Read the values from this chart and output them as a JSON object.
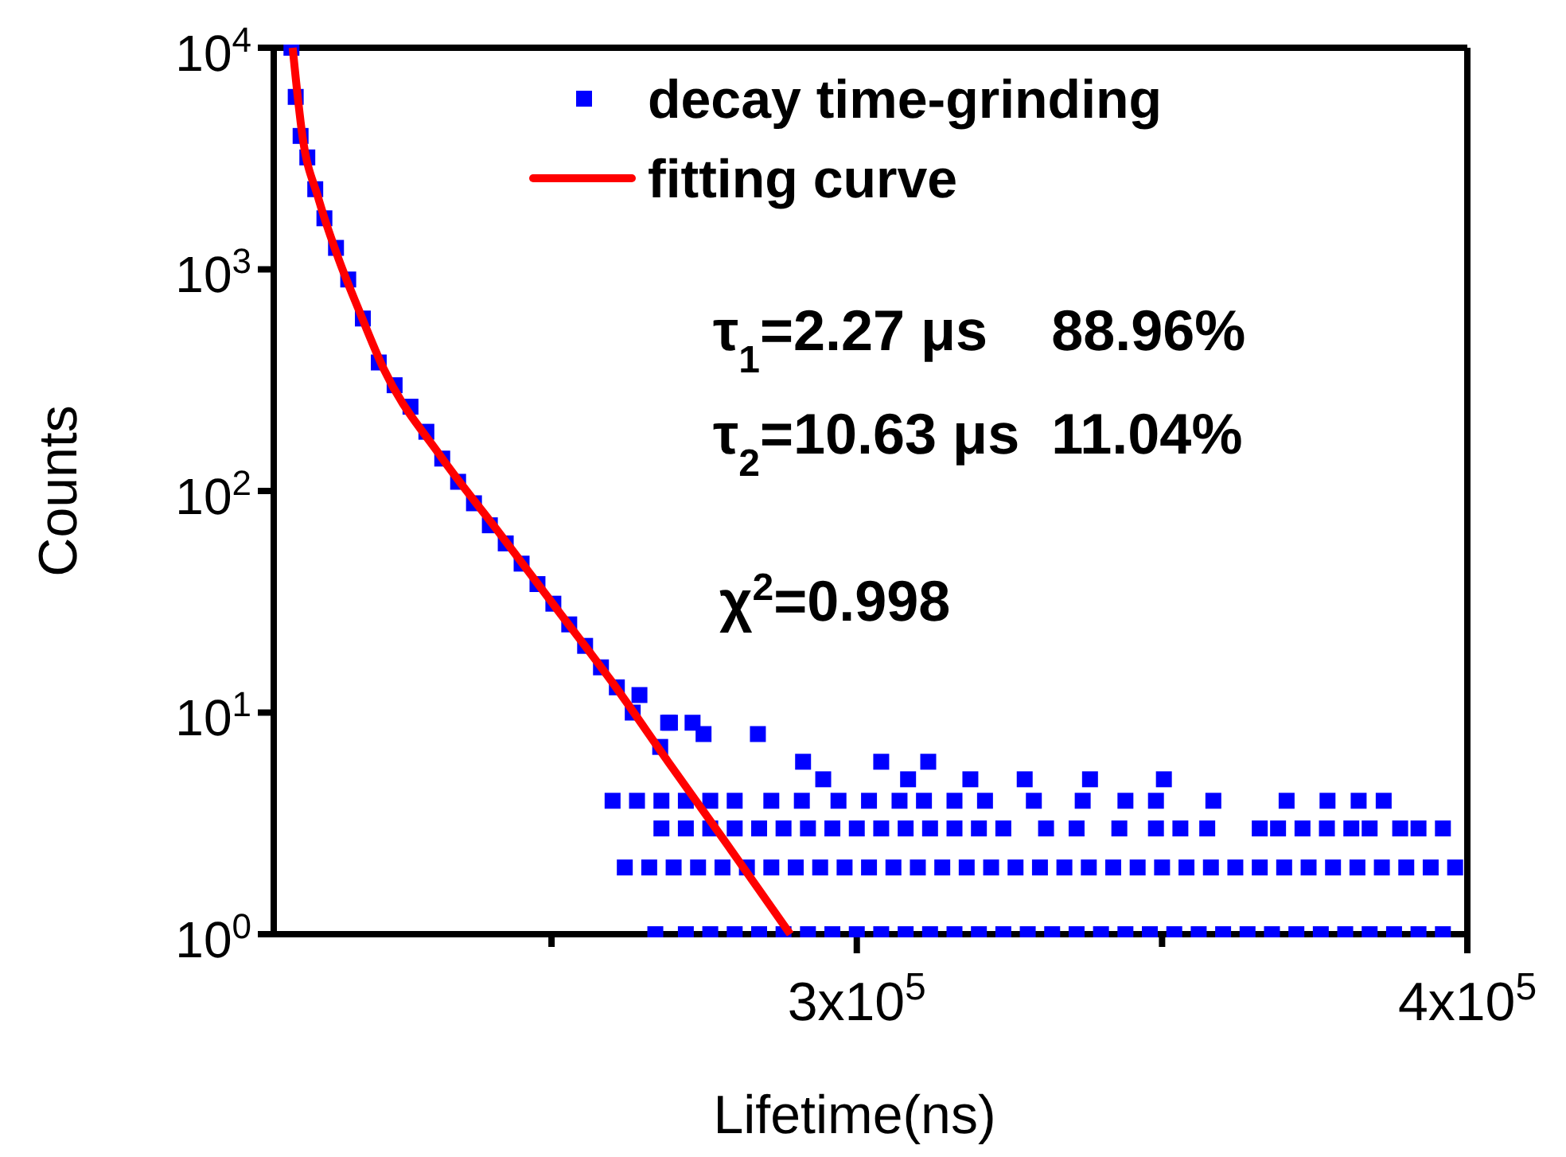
{
  "chart_data": {
    "type": "scatter",
    "xlabel": "Lifetime(ns)",
    "ylabel": "Counts",
    "log": "y",
    "xlim": [
      204500,
      400000
    ],
    "ylim": [
      1,
      10000
    ],
    "xticks": [
      {
        "value": 250000,
        "label": null
      },
      {
        "value": 300000,
        "label": "3x10$^{5}$"
      },
      {
        "value": 350000,
        "label": null
      },
      {
        "value": 400000,
        "label": "4x10$^{5}$"
      }
    ],
    "yticks": [
      {
        "value": 1,
        "label": "10$^{0}$"
      },
      {
        "value": 10,
        "label": "10$^{1}$"
      },
      {
        "value": 100,
        "label": "10$^{2}$"
      },
      {
        "value": 1000,
        "label": "10$^{3}$"
      },
      {
        "value": 10000,
        "label": "10$^{4}$"
      }
    ],
    "grid": false,
    "legend": "top right",
    "annotations": [
      "τ$_{1}$=2.27 μs    88.96%",
      "τ$_{2}$=10.63 μs  11.04%",
      "χ$^{2}$=0.998"
    ],
    "series": [
      {
        "name": "decay time-grinding",
        "color": "#0000ff",
        "marker": "square",
        "x": [
          207400,
          208100,
          208900,
          210000,
          211300,
          212800,
          214700,
          216700,
          219100,
          221700,
          224300,
          226900,
          229500,
          232100,
          234700,
          237300,
          239900,
          242500,
          245100,
          247700,
          250300,
          252900,
          255500,
          258100,
          260700,
          263300,
          264400,
          269100,
          267800,
          269400,
          273100,
          274900,
          283800,
          262000,
          266000,
          270000,
          274000,
          278000,
          282000,
          286000,
          290000,
          294000,
          298000,
          302000,
          306000,
          310000,
          314000,
          318000,
          322000,
          326000,
          330000,
          334000,
          338000,
          342000,
          346000,
          350000,
          354000,
          358000,
          362000,
          366000,
          370000,
          374000,
          378000,
          382000,
          386000,
          390000,
          394000,
          398000,
          267000,
          272000,
          276000,
          280000,
          284000,
          288000,
          292000,
          296000,
          300000,
          304000,
          308000,
          312000,
          316000,
          320000,
          324000,
          328000,
          332000,
          336000,
          340000,
          344000,
          348000,
          352000,
          356000,
          360000,
          364000,
          368000,
          372000,
          376000,
          380000,
          384000,
          388000,
          392000,
          396000,
          268000,
          272000,
          276000,
          280000,
          284000,
          288000,
          292000,
          296000,
          300000,
          304000,
          308000,
          312000,
          316000,
          320000,
          324000,
          331000,
          336000,
          343000,
          349000,
          353000,
          357400,
          366000,
          369000,
          373000,
          377000,
          381000,
          384000,
          389000,
          392000,
          396000,
          260000,
          264000,
          268000,
          272000,
          276000,
          280000,
          286000,
          291000,
          297000,
          302000,
          307000,
          311000,
          316000,
          321000,
          329000,
          337000,
          344000,
          349000,
          358400,
          370400,
          377100,
          382200,
          386300,
          294500,
          308400,
          318600,
          327500,
          338200,
          350300,
          291200,
          304000,
          311700
        ],
        "values": [
          10000,
          6000,
          4000,
          3200,
          2300,
          1700,
          1250,
          900,
          600,
          380,
          300,
          240,
          185,
          140,
          110,
          88,
          70,
          58,
          47,
          38,
          31,
          25,
          20,
          16,
          13,
          10,
          12,
          9,
          7,
          9,
          9,
          8,
          8,
          2,
          2,
          2,
          2,
          2,
          2,
          2,
          2,
          2,
          2,
          2,
          2,
          2,
          2,
          2,
          2,
          2,
          2,
          2,
          2,
          2,
          2,
          2,
          2,
          2,
          2,
          2,
          2,
          2,
          2,
          2,
          2,
          2,
          2,
          2,
          1,
          1,
          1,
          1,
          1,
          1,
          1,
          1,
          1,
          1,
          1,
          1,
          1,
          1,
          1,
          1,
          1,
          1,
          1,
          1,
          1,
          1,
          1,
          1,
          1,
          1,
          1,
          1,
          1,
          1,
          1,
          1,
          1,
          3,
          3,
          3,
          3,
          3,
          3,
          3,
          3,
          3,
          3,
          3,
          3,
          3,
          3,
          3,
          3,
          3,
          3,
          3,
          3,
          3,
          3,
          3,
          3,
          3,
          3,
          3,
          3,
          3,
          3,
          4,
          4,
          4,
          4,
          4,
          4,
          4,
          4,
          4,
          4,
          4,
          4,
          4,
          4,
          4,
          4,
          4,
          4,
          4,
          4,
          4,
          4,
          4,
          5,
          5,
          5,
          5,
          5,
          5,
          6,
          6,
          6
        ]
      },
      {
        "name": "fitting curve",
        "type": "line",
        "color": "#ff0000",
        "marker": "none",
        "line_style": "solid",
        "x": [
          207600,
          209200,
          211800,
          215200,
          218500,
          222500,
          231800,
          241200,
          250600,
          259700,
          269100,
          278500,
          289100
        ],
        "values": [
          10000,
          4000,
          2100,
          1100,
          650,
          356,
          144,
          66,
          30,
          14,
          6,
          2.6,
          1
        ]
      }
    ]
  }
}
